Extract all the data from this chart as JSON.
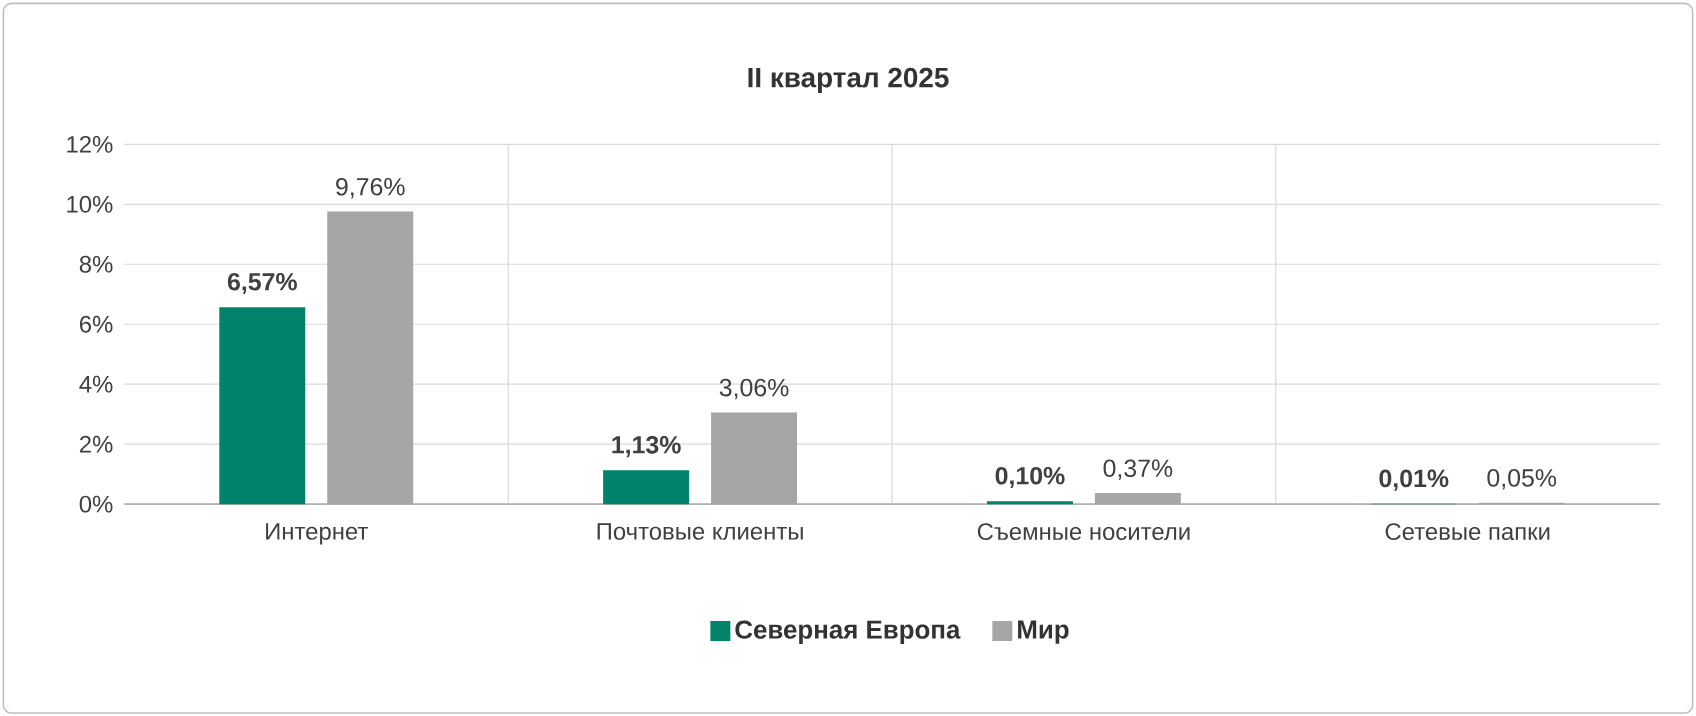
{
  "chart_data": {
    "type": "bar",
    "title": "II квартал 2025",
    "categories": [
      "Интернет",
      "Почтовые клиенты",
      "Съемные носители",
      "Сетевые папки"
    ],
    "series": [
      {
        "name": "Северная Европа",
        "color": "#00836a",
        "values": [
          6.57,
          1.13,
          0.1,
          0.01
        ],
        "value_labels": [
          "6,57%",
          "1,13%",
          "0,10%",
          "0,01%"
        ]
      },
      {
        "name": "Мир",
        "color": "#a6a6a6",
        "values": [
          9.76,
          3.06,
          0.37,
          0.05
        ],
        "value_labels": [
          "9,76%",
          "3,06%",
          "0,37%",
          "0,05%"
        ]
      }
    ],
    "ylim": [
      0,
      12
    ],
    "yticks": [
      {
        "value": 0,
        "label": "0%"
      },
      {
        "value": 2,
        "label": "2%"
      },
      {
        "value": 4,
        "label": "4%"
      },
      {
        "value": 6,
        "label": "6%"
      },
      {
        "value": 8,
        "label": "8%"
      },
      {
        "value": 10,
        "label": "10%"
      },
      {
        "value": 12,
        "label": "12%"
      }
    ],
    "grid": true,
    "legend": "bottom"
  }
}
